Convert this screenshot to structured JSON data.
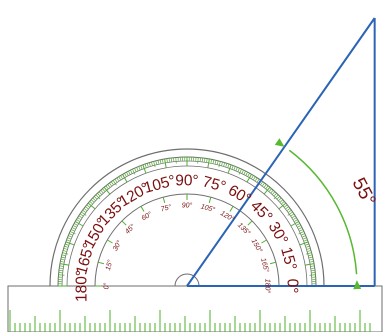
{
  "protractor": {
    "outer_labels": [
      "0°",
      "15°",
      "30°",
      "45°",
      "60°",
      "75°",
      "90°",
      "105°",
      "120°",
      "135°",
      "150°",
      "165°",
      "180°"
    ],
    "inner_labels": [
      "0°",
      "15°",
      "30°",
      "45°",
      "60°",
      "75°",
      "90°",
      "105°",
      "120°",
      "135°",
      "150°",
      "165°",
      "180°"
    ]
  },
  "angle": {
    "label": "55°",
    "value_degrees": 55
  },
  "colors": {
    "protractor_line": "#6e6e6e",
    "protractor_tick_green": "#4caf2a",
    "label_text": "#7a1010",
    "ray": "#2b63b5",
    "arc": "#58b830",
    "marker_red": "#d81f1f"
  }
}
